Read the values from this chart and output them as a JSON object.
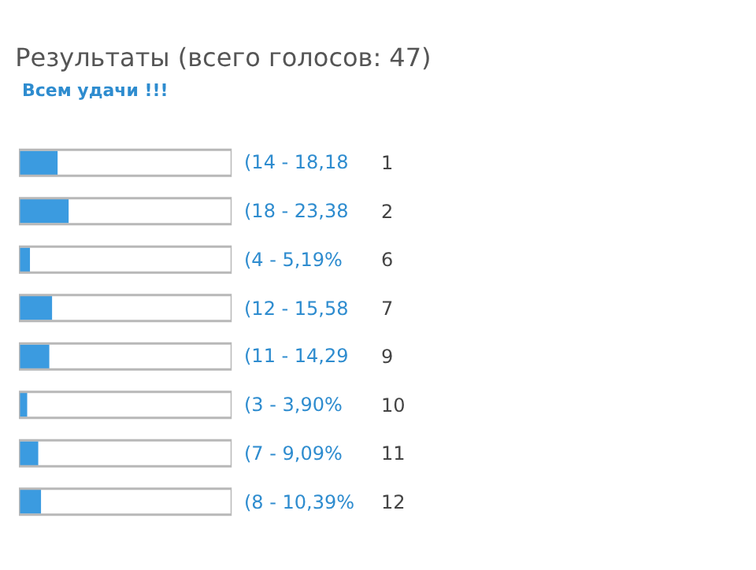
{
  "chart_data": {
    "type": "bar",
    "orientation": "horizontal",
    "title": "Результаты (всего голосов: 47)",
    "subtitle": "Всем удачи !!!",
    "categories": [
      "1",
      "2",
      "6",
      "7",
      "9",
      "10",
      "11",
      "12"
    ],
    "values": [
      14,
      18,
      4,
      12,
      11,
      3,
      7,
      8
    ],
    "value_labels": [
      "(14 - 18,18",
      "(18 - 23,38",
      "(4 - 5,19%",
      "(12 - 15,58",
      "(11 - 14,29",
      "(3 - 3,90%",
      "(7 - 9,09%",
      "(8 - 10,39%"
    ],
    "color": "#3b9be0",
    "tick_labels": "y",
    "grid": false,
    "legend": false
  }
}
